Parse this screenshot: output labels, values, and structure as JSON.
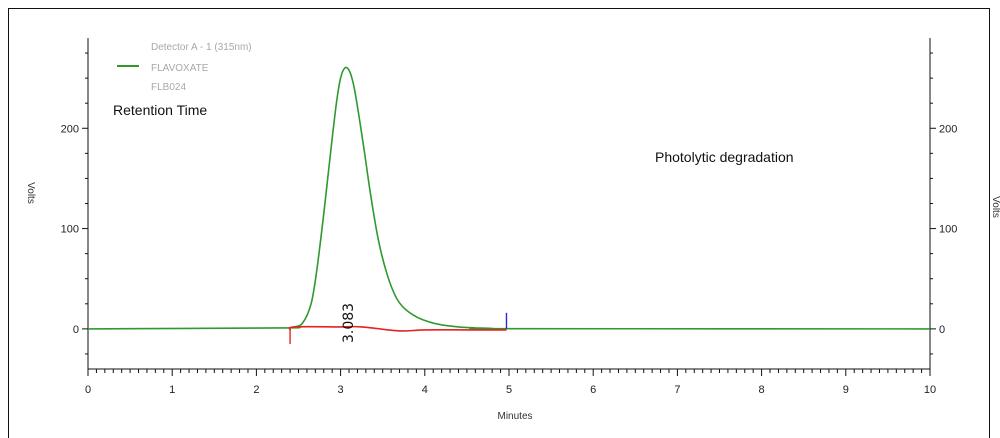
{
  "chart_data": {
    "type": "line",
    "xlabel": "Minutes",
    "ylabel_left": "Volts",
    "ylabel_right": "Volts",
    "xlim": [
      0,
      10
    ],
    "ylim": [
      -40,
      290
    ],
    "x_ticks": [
      "0",
      "1",
      "2",
      "3",
      "4",
      "5",
      "6",
      "7",
      "8",
      "9",
      "10"
    ],
    "y_ticks_left": [
      "0",
      "100",
      "200"
    ],
    "y_ticks_right": [
      "0",
      "100",
      "200"
    ],
    "legend": {
      "detector": "Detector A - 1 (315nm)",
      "name": "FLAVOXATE",
      "sample": "FLB024",
      "color": "#2e9a2e"
    },
    "annotations": {
      "retention_time": "Retention Time",
      "condition": "Photolytic degradation",
      "peak_label": "3.083"
    },
    "peak": {
      "retention_time": 3.083,
      "height": 260
    },
    "series": [
      {
        "name": "FLAVOXATE",
        "color": "#2e9a2e",
        "x": [
          0,
          2.3,
          2.45,
          2.55,
          2.65,
          2.72,
          2.8,
          2.88,
          2.95,
          3.0,
          3.05,
          3.1,
          3.15,
          3.2,
          3.28,
          3.36,
          3.45,
          3.55,
          3.65,
          3.75,
          3.9,
          4.05,
          4.2,
          4.4,
          4.6,
          4.8,
          4.95,
          10
        ],
        "y": [
          0,
          1,
          2,
          6,
          25,
          60,
          115,
          175,
          225,
          250,
          260,
          258,
          245,
          222,
          178,
          132,
          88,
          55,
          33,
          21,
          12,
          7,
          4,
          2,
          1,
          0.5,
          0.2,
          0
        ]
      },
      {
        "name": "baseline",
        "color": "#e52222",
        "x": [
          2.4,
          2.45,
          3.0,
          3.25,
          3.7,
          4.0,
          4.5,
          4.85,
          4.97
        ],
        "y": [
          -1,
          2,
          2,
          2,
          -2,
          -1,
          -1,
          -1,
          -1
        ]
      }
    ],
    "markers": [
      {
        "x": 2.4,
        "y_from": 0,
        "y_to": -15,
        "color": "#e52222"
      },
      {
        "x": 4.97,
        "y_from": 0,
        "y_to": 16,
        "color": "#2a2ad0"
      }
    ]
  }
}
